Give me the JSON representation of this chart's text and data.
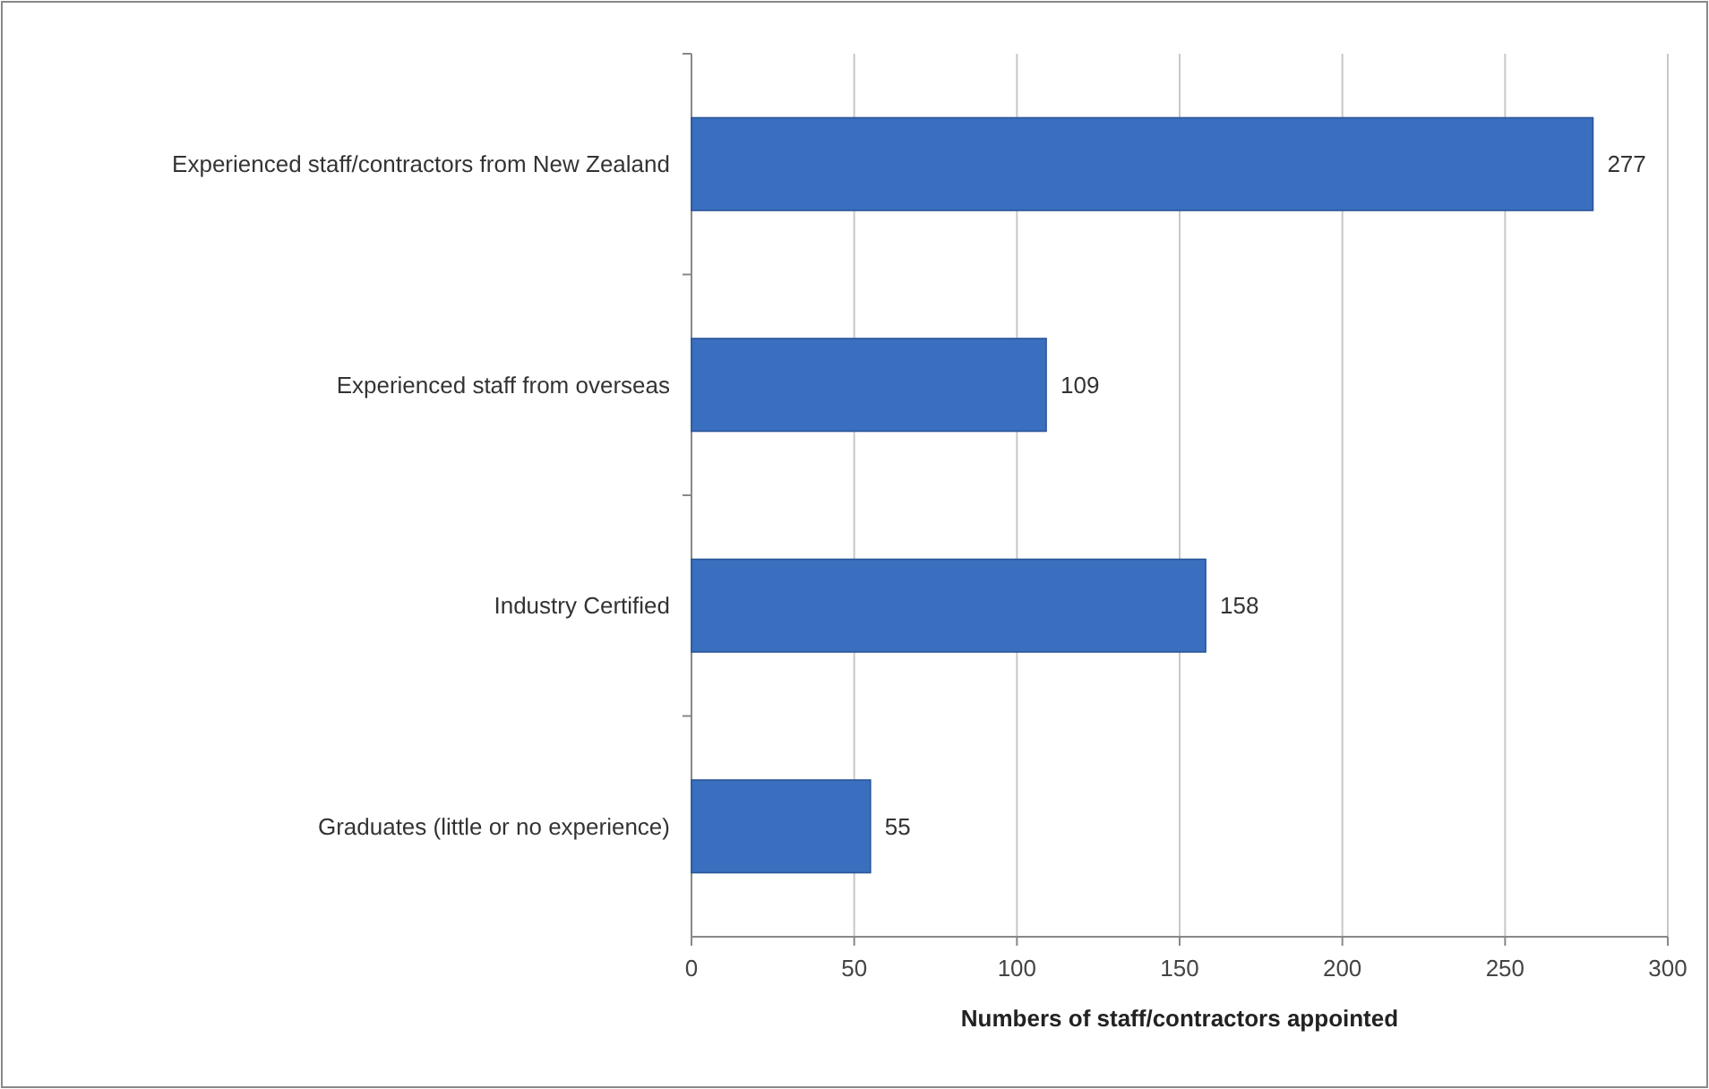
{
  "chart_data": {
    "type": "bar",
    "orientation": "horizontal",
    "categories": [
      "Experienced staff/contractors from New Zealand",
      "Experienced staff from overseas",
      "Industry Certified",
      "Graduates (little or no experience)"
    ],
    "values": [
      277,
      109,
      158,
      55
    ],
    "color": "#3a6fbf",
    "xlim": [
      0,
      300
    ],
    "xticks": [
      0,
      50,
      100,
      150,
      200,
      250,
      300
    ],
    "xlabel": "Numbers of staff/contractors appointed",
    "grid": "x",
    "data_labels": true
  }
}
